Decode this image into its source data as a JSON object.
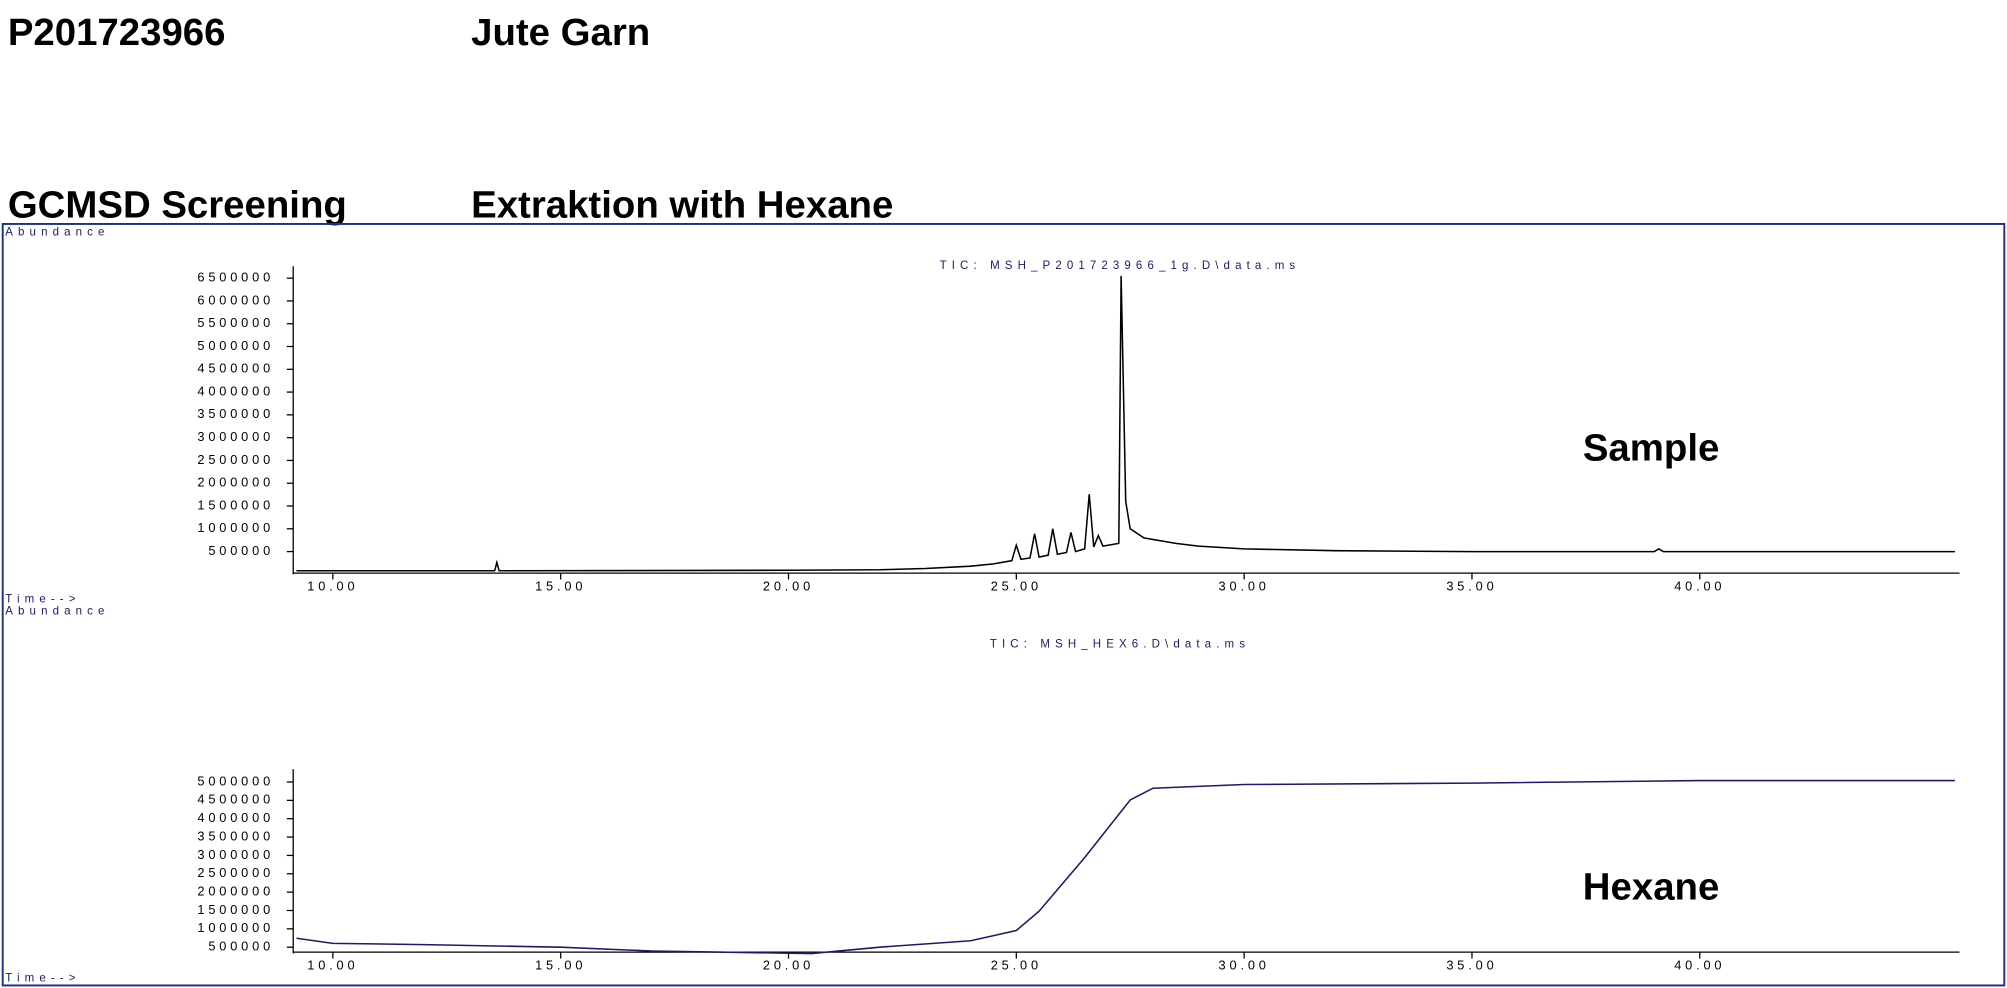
{
  "header": {
    "sample_id": "P201723966",
    "material": "Jute Garn",
    "method": "GCMSD Screening",
    "extraction": "Extraktion with Hexane"
  },
  "chart_data": [
    {
      "type": "line",
      "title": "TIC: MSH_P201723966_1g.D\\data.ms",
      "ylabel": "Abundance",
      "xlabel": "Time-->",
      "annotation": "Sample",
      "x": [
        9.2,
        13.55,
        13.6,
        13.65,
        20,
        22,
        23,
        24,
        24.5,
        24.9,
        25.0,
        25.1,
        25.3,
        25.4,
        25.5,
        25.7,
        25.8,
        25.9,
        26.1,
        26.2,
        26.3,
        26.5,
        26.6,
        26.7,
        26.8,
        26.9,
        27.25,
        27.3,
        27.4,
        27.5,
        27.8,
        28.5,
        29,
        30,
        32,
        35,
        38,
        39,
        39.1,
        39.2,
        45.6
      ],
      "series": [
        {
          "name": "Sample",
          "color": "#000000",
          "values": [
            80000,
            80000,
            260000,
            80000,
            90000,
            100000,
            130000,
            180000,
            230000,
            300000,
            640000,
            330000,
            360000,
            890000,
            380000,
            420000,
            1000000,
            440000,
            480000,
            920000,
            500000,
            560000,
            1760000,
            600000,
            850000,
            620000,
            680000,
            6550000,
            1600000,
            1000000,
            800000,
            680000,
            620000,
            560000,
            520000,
            500000,
            500000,
            500000,
            560000,
            500000,
            500000
          ]
        }
      ],
      "xlim": [
        9.13,
        45.7
      ],
      "ylim": [
        0,
        6650000
      ],
      "xticks": [
        {
          "value": 10,
          "label": "10.00"
        },
        {
          "value": 15,
          "label": "15.00"
        },
        {
          "value": 20,
          "label": "20.00"
        },
        {
          "value": 25,
          "label": "25.00"
        },
        {
          "value": 30,
          "label": "30.00"
        },
        {
          "value": 35,
          "label": "35.00"
        },
        {
          "value": 40,
          "label": "40.00"
        }
      ],
      "yticks": [
        500000,
        1000000,
        1500000,
        2000000,
        2500000,
        3000000,
        3500000,
        4000000,
        4500000,
        5000000,
        5500000,
        6000000,
        6500000
      ]
    },
    {
      "type": "line",
      "title": "TIC: MSH_HEX6.D\\data.ms",
      "ylabel": "Abundance",
      "xlabel": "Time-->",
      "annotation": "Hexane",
      "x": [
        9.2,
        10,
        12,
        15,
        17,
        20.5,
        22,
        24,
        25,
        25.5,
        26.5,
        27.5,
        28,
        30,
        35,
        40,
        45.6
      ],
      "series": [
        {
          "name": "Hexane",
          "color": "#1a1a6e",
          "values": [
            745000,
            605000,
            570000,
            500000,
            395000,
            325000,
            500000,
            675000,
            955000,
            1480000,
            2940000,
            4510000,
            4830000,
            4930000,
            4970000,
            5040000,
            5040000
          ]
        }
      ],
      "xlim": [
        9.13,
        45.7
      ],
      "ylim": [
        330000,
        5210000
      ],
      "xticks": [
        {
          "value": 10,
          "label": "10.00"
        },
        {
          "value": 15,
          "label": "15.00"
        },
        {
          "value": 20,
          "label": "20.00"
        },
        {
          "value": 25,
          "label": "25.00"
        },
        {
          "value": 30,
          "label": "30.00"
        },
        {
          "value": 35,
          "label": "35.00"
        },
        {
          "value": 40,
          "label": "40.00"
        }
      ],
      "yticks": [
        500000,
        1000000,
        1500000,
        2000000,
        2500000,
        3000000,
        3500000,
        4000000,
        4500000,
        5000000
      ]
    }
  ]
}
